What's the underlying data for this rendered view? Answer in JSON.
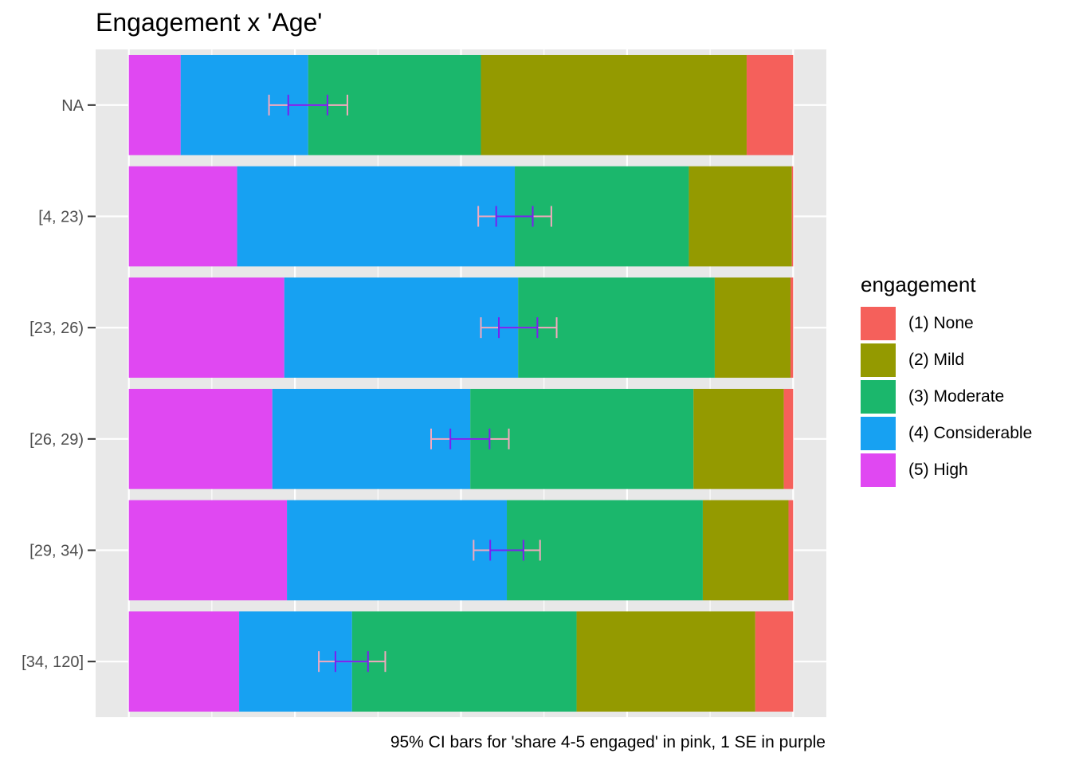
{
  "chart_data": {
    "type": "bar",
    "orientation": "horizontal",
    "stacked": "proportion",
    "title": "Engagement x 'Age'",
    "caption": "95% CI bars for 'share 4-5 engaged'  in pink, 1 SE in purple",
    "xlabel": "",
    "ylabel": "",
    "xlim": [
      -0.05,
      1.05
    ],
    "grid": true,
    "legend_position": "right",
    "legend_title": "engagement",
    "categories": [
      "NA",
      "[4, 23)",
      "[23, 26)",
      "[26, 29)",
      "[29, 34)",
      "[34, 120]"
    ],
    "series": [
      {
        "name": "(5) High",
        "color": "#E048F2",
        "values": [
          0.078,
          0.163,
          0.234,
          0.216,
          0.238,
          0.166
        ]
      },
      {
        "name": "(4) Considerable",
        "color": "#17A1F2",
        "values": [
          0.192,
          0.418,
          0.352,
          0.298,
          0.331,
          0.17
        ]
      },
      {
        "name": "(3) Moderate",
        "color": "#1BB76C",
        "values": [
          0.26,
          0.262,
          0.296,
          0.336,
          0.295,
          0.338
        ]
      },
      {
        "name": "(2) Mild",
        "color": "#949A00",
        "values": [
          0.4,
          0.155,
          0.114,
          0.136,
          0.129,
          0.269
        ]
      },
      {
        "name": "(1) None",
        "color": "#F5605B",
        "values": [
          0.07,
          0.002,
          0.004,
          0.014,
          0.007,
          0.057
        ]
      }
    ],
    "share_4_5": {
      "estimate": [
        0.27,
        0.581,
        0.586,
        0.514,
        0.569,
        0.336
      ],
      "se_low": [
        0.24,
        0.553,
        0.557,
        0.484,
        0.544,
        0.311
      ],
      "se_high": [
        0.299,
        0.608,
        0.615,
        0.543,
        0.594,
        0.36
      ],
      "ci_low": [
        0.211,
        0.526,
        0.53,
        0.455,
        0.519,
        0.286
      ],
      "ci_high": [
        0.329,
        0.636,
        0.644,
        0.572,
        0.619,
        0.386
      ],
      "ci_color": "#F4A9BE",
      "se_color": "#7A1FF0"
    }
  }
}
